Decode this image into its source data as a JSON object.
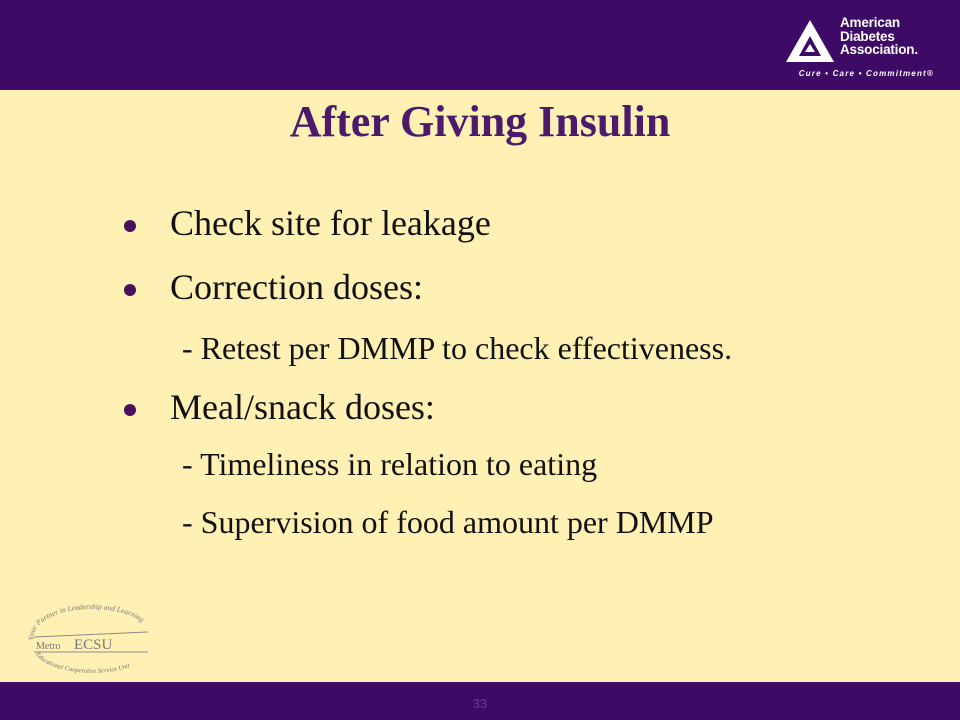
{
  "slide": {
    "title": "After Giving Insulin",
    "page_number": "33",
    "bullets": [
      {
        "text": "Check site for leakage"
      },
      {
        "text": "Correction doses:"
      },
      {
        "text": "Meal/snack doses:"
      }
    ],
    "subpoints": [
      "- Retest per DMMP to check effectiveness.",
      "- Timeliness in relation to eating",
      "- Supervision of food amount per DMMP"
    ]
  },
  "header_logo": {
    "line1": "American",
    "line2": "Diabetes",
    "line3": "Association.",
    "tagline": "Cure • Care • Commitment®"
  },
  "footer_logo": {
    "arc_text": "Your Partner in Leadership and Learning",
    "name_prefix": "Metro",
    "name": "ECSU",
    "bottom_text": "Educational Cooperative Service Unit"
  },
  "colors": {
    "bar": "#3D0A66",
    "background": "#FFF0B4",
    "title": "#4B1A6B",
    "bullet": "#4A1060"
  }
}
